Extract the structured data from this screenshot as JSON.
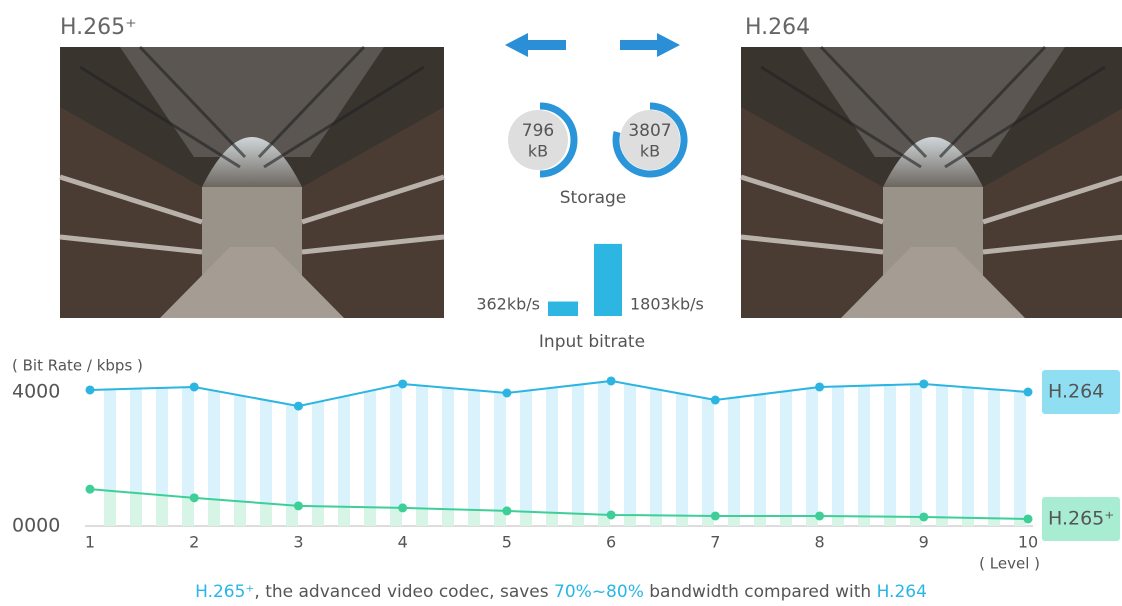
{
  "images": [
    {
      "label": "H.265⁺"
    },
    {
      "label": "H.264"
    }
  ],
  "storage": {
    "title": "Storage",
    "values": [
      796,
      3807
    ],
    "unit": "kB"
  },
  "bitrate": {
    "title": "Input bitrate",
    "values": [
      362,
      1803
    ],
    "value_labels": [
      "362kb/s",
      "1803kb/s"
    ]
  },
  "chart_data": {
    "type": "line",
    "ylabel": "( Bit Rate / kbps )",
    "xlabel": "( Level )",
    "x": [
      1,
      2,
      3,
      4,
      5,
      6,
      7,
      8,
      9,
      10
    ],
    "xlim": [
      1,
      10
    ],
    "xticks": [
      1,
      2,
      3,
      4,
      5,
      6,
      7,
      8,
      9,
      10
    ],
    "ylim": [
      0,
      4000
    ],
    "yticks": [
      {
        "value": 0,
        "label": "0000"
      },
      4000
    ],
    "series": [
      {
        "name": "H.264",
        "color": "#2bb5e0",
        "values": [
          4060,
          4150,
          3580,
          4240,
          3970,
          4330,
          3760,
          4150,
          4240,
          4000
        ]
      },
      {
        "name": "H.265⁺",
        "color": "#3ecf98",
        "values": [
          1100,
          840,
          600,
          540,
          450,
          330,
          300,
          300,
          270,
          210
        ]
      }
    ]
  },
  "caption": [
    "H.265⁺",
    ", the advanced video codec, saves ",
    "70%~80%",
    " bandwidth compared with ",
    "H.264"
  ]
}
